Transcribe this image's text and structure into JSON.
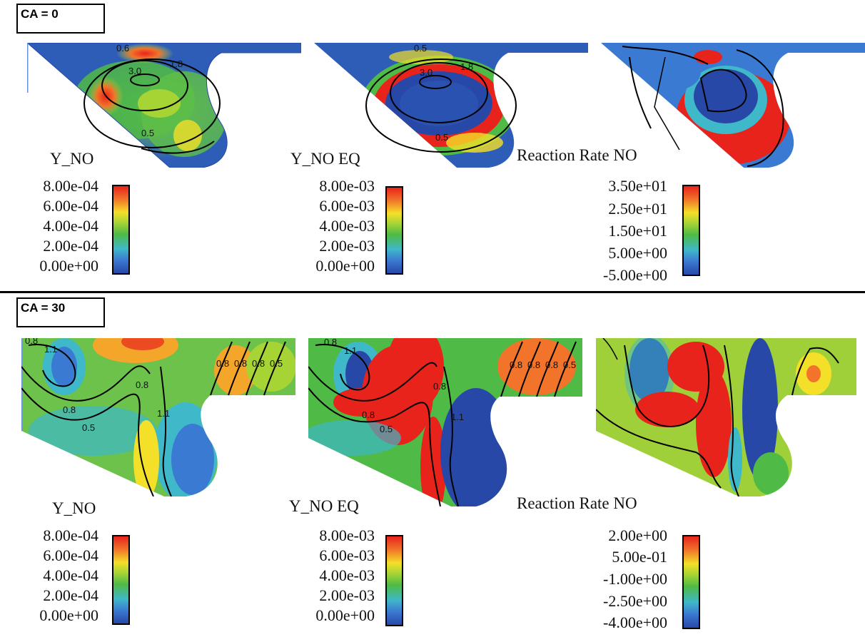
{
  "rows": [
    {
      "ca_label": "CA = 0",
      "panels": [
        {
          "title": "Y_NO",
          "colorbar_ticks": [
            "8.00e-04",
            "6.00e-04",
            "4.00e-04",
            "2.00e-04",
            "0.00e+00"
          ],
          "contour_labels": [
            "0.6",
            "3.0",
            "1.8",
            "0.5"
          ]
        },
        {
          "title": "Y_NO EQ",
          "colorbar_ticks": [
            "8.00e-03",
            "6.00e-03",
            "4.00e-03",
            "2.00e-03",
            "0.00e+00"
          ],
          "contour_labels": [
            "0.5",
            "3.0",
            "1.8",
            "0.5"
          ]
        },
        {
          "title": "Reaction Rate NO",
          "colorbar_ticks": [
            "3.50e+01",
            "2.50e+01",
            "1.50e+01",
            "5.00e+00",
            "-5.00e+00"
          ],
          "contour_labels": []
        }
      ]
    },
    {
      "ca_label": "CA = 30",
      "panels": [
        {
          "title": "Y_NO",
          "colorbar_ticks": [
            "8.00e-04",
            "6.00e-04",
            "4.00e-04",
            "2.00e-04",
            "0.00e+00"
          ],
          "contour_labels": [
            "0.8",
            "1.1",
            "0.8",
            "0.8",
            "0.5",
            "1.1",
            "0.8",
            "0.8",
            "0.8",
            "0.5"
          ]
        },
        {
          "title": "Y_NO EQ",
          "colorbar_ticks": [
            "8.00e-03",
            "6.00e-03",
            "4.00e-03",
            "2.00e-03",
            "0.00e+00"
          ],
          "contour_labels": [
            "0.8",
            "1.1",
            "0.8",
            "0.8",
            "0.5",
            "1.1",
            "0.8",
            "0.8",
            "0.8",
            "0.5"
          ]
        },
        {
          "title": "Reaction Rate NO",
          "colorbar_ticks": [
            "2.00e+00",
            "5.00e-01",
            "-1.00e+00",
            "-2.50e+00",
            "-4.00e+00"
          ],
          "contour_labels": []
        }
      ]
    }
  ],
  "colormap": [
    "#2848a8",
    "#3b7ad2",
    "#3fb8c9",
    "#4fba45",
    "#a7d435",
    "#f4e028",
    "#f1742a",
    "#e8231c"
  ]
}
